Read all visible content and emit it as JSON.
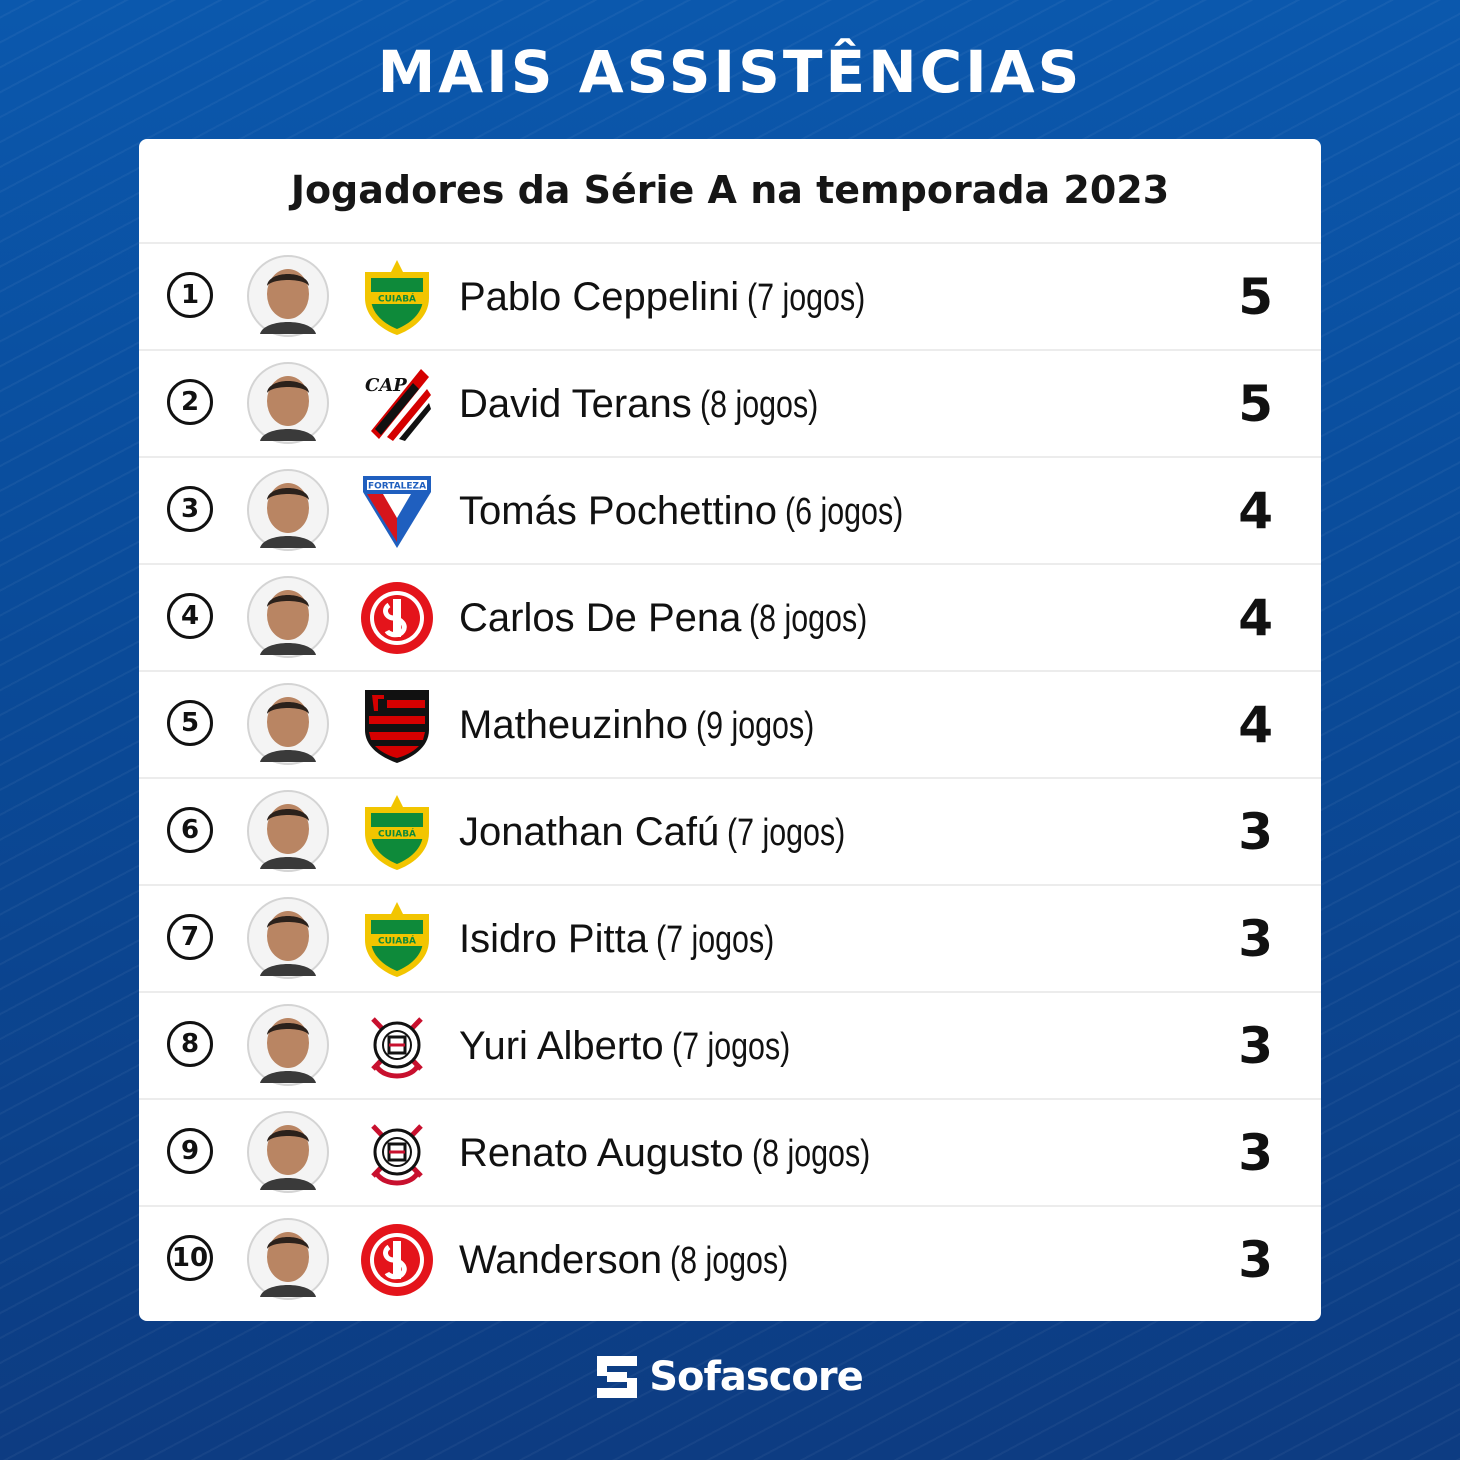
{
  "title": "MAIS ASSISTÊNCIAS",
  "subtitle": "Jogadores da Série A na temporada 2023",
  "brand": "Sofascore",
  "colors": {
    "background": "#0a4a98",
    "card": "#ffffff",
    "text": "#111111"
  },
  "players": [
    {
      "rank": "1",
      "name": "Pablo Ceppelini",
      "games": "(7 jogos)",
      "assists": "5",
      "club_icon": "cuiaba-crest-icon",
      "club_text": "CUIABÁ"
    },
    {
      "rank": "2",
      "name": "David Terans",
      "games": "(8 jogos)",
      "assists": "5",
      "club_icon": "athletico-crest-icon",
      "club_text": "CAP"
    },
    {
      "rank": "3",
      "name": "Tomás Pochettino",
      "games": "(6 jogos)",
      "assists": "4",
      "club_icon": "fortaleza-crest-icon",
      "club_text": "FORTALEZA"
    },
    {
      "rank": "4",
      "name": "Carlos De Pena",
      "games": "(8 jogos)",
      "assists": "4",
      "club_icon": "internacional-crest-icon",
      "club_text": ""
    },
    {
      "rank": "5",
      "name": "Matheuzinho",
      "games": "(9 jogos)",
      "assists": "4",
      "club_icon": "flamengo-crest-icon",
      "club_text": ""
    },
    {
      "rank": "6",
      "name": "Jonathan Cafú",
      "games": "(7 jogos)",
      "assists": "3",
      "club_icon": "cuiaba-crest-icon",
      "club_text": "CUIABÁ"
    },
    {
      "rank": "7",
      "name": "Isidro Pitta",
      "games": "(7 jogos)",
      "assists": "3",
      "club_icon": "cuiaba-crest-icon",
      "club_text": "CUIABÁ"
    },
    {
      "rank": "8",
      "name": "Yuri Alberto",
      "games": "(7 jogos)",
      "assists": "3",
      "club_icon": "corinthians-crest-icon",
      "club_text": ""
    },
    {
      "rank": "9",
      "name": "Renato Augusto",
      "games": "(8 jogos)",
      "assists": "3",
      "club_icon": "corinthians-crest-icon",
      "club_text": ""
    },
    {
      "rank": "10",
      "name": "Wanderson",
      "games": "(8 jogos)",
      "assists": "3",
      "club_icon": "internacional-crest-icon",
      "club_text": ""
    }
  ]
}
